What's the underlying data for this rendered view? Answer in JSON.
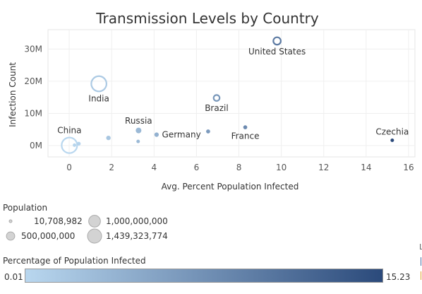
{
  "chart_data": {
    "type": "scatter",
    "title": "Transmission Levels by Country",
    "xlabel": "Avg. Percent Population Infected",
    "ylabel": "Infection Count",
    "xlim": [
      -1,
      16.3
    ],
    "ylim": [
      -3500000,
      36000000
    ],
    "x_ticks": [
      0,
      2,
      4,
      6,
      8,
      10,
      12,
      14,
      16
    ],
    "y_ticks": [
      0,
      10000000,
      20000000,
      30000000
    ],
    "y_tick_labels": [
      "0M",
      "10M",
      "20M",
      "30M"
    ],
    "grid": true,
    "points": [
      {
        "label": "United States",
        "x": 9.8,
        "y": 32500000,
        "population": 331000000,
        "pct": 9.8,
        "label_pos": "below"
      },
      {
        "label": "India",
        "x": 1.4,
        "y": 19200000,
        "population": 1380000000,
        "pct": 1.4,
        "label_pos": "below"
      },
      {
        "label": "Brazil",
        "x": 6.95,
        "y": 14800000,
        "population": 212000000,
        "pct": 6.95,
        "label_pos": "below"
      },
      {
        "label": "Russia",
        "x": 3.27,
        "y": 4700000,
        "population": 145000000,
        "pct": 3.27,
        "label_pos": "above"
      },
      {
        "label": "France",
        "x": 8.3,
        "y": 5700000,
        "population": 65000000,
        "pct": 8.3,
        "label_pos": "below"
      },
      {
        "label": "Germany",
        "x": 4.12,
        "y": 3400000,
        "population": 83000000,
        "pct": 4.12,
        "label_pos": "right"
      },
      {
        "label": "China",
        "x": 0.01,
        "y": 100000,
        "population": 1439323774,
        "pct": 0.01,
        "label_pos": "above"
      },
      {
        "label": "Czechia",
        "x": 15.23,
        "y": 1650000,
        "population": 10708982,
        "pct": 15.23,
        "label_pos": "above"
      },
      {
        "label": "",
        "x": 1.85,
        "y": 2400000,
        "population": 84000000,
        "pct": 1.85
      },
      {
        "label": "",
        "x": 0.45,
        "y": 600000,
        "population": 60000000,
        "pct": 0.45
      },
      {
        "label": "",
        "x": 0.25,
        "y": 150000,
        "population": 40000000,
        "pct": 0.25
      },
      {
        "label": "",
        "x": 3.25,
        "y": 1300000,
        "population": 20000000,
        "pct": 3.25
      },
      {
        "label": "",
        "x": 6.55,
        "y": 4400000,
        "population": 67000000,
        "pct": 6.55
      }
    ],
    "size_legend": {
      "title": "Population",
      "items": [
        "10,708,982",
        "500,000,000",
        "1,000,000,000",
        "1,439,323,774"
      ],
      "values": [
        10708982,
        500000000,
        1000000000,
        1439323774
      ]
    },
    "color_legend": {
      "title": "Percentage of Population Infected",
      "min_label": "0.01",
      "max_label": "15.23",
      "min": 0.01,
      "max": 15.23,
      "color_low": "#b9d7ef",
      "color_high": "#2b4a7b"
    },
    "edge_label": "L"
  }
}
